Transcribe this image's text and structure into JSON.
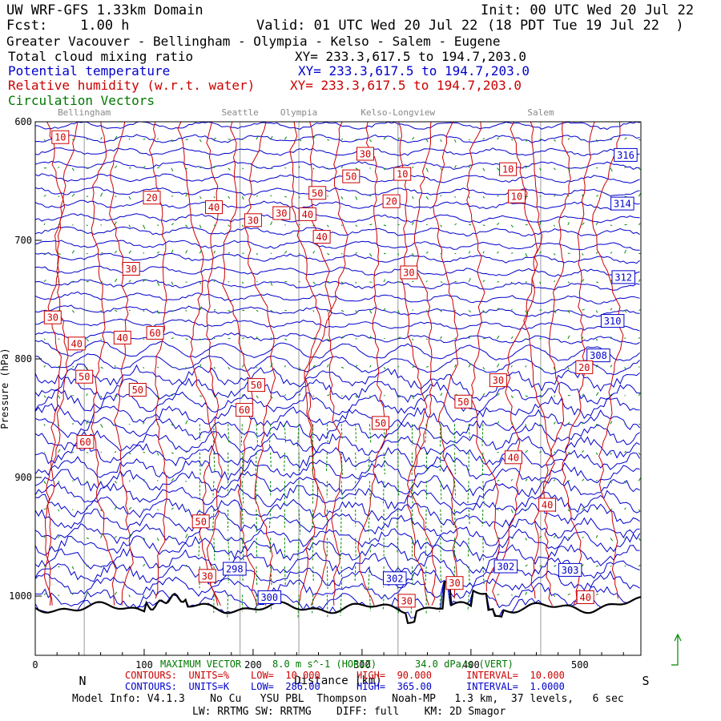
{
  "header": {
    "line1_left": "UW WRF-GFS 1.33km Domain",
    "line1_right": "Init: 00 UTC Wed 20 Jul 22",
    "line2_left": "Fcst:    1.00 h",
    "line2_mid": "Valid: 01 UTC Wed 20 Jul 22",
    "line2_right": "(18 PDT Tue 19 Jul 22  )",
    "region": "Greater Vacouver - Bellingham - Olympia - Kelso - Salem - Eugene"
  },
  "fields": [
    {
      "name": "Total cloud mixing ratio",
      "xy": "XY= 233.3,617.5 to 194.7,203.0",
      "color": "#000000"
    },
    {
      "name": "Potential temperature",
      "xy": "XY= 233.3,617.5 to 194.7,203.0",
      "color": "#0000cc"
    },
    {
      "name": "Relative humidity (w.r.t. water)",
      "xy": "XY= 233.3,617.5 to 194.7,203.0",
      "color": "#cc0000"
    },
    {
      "name": "Circulation Vectors",
      "xy": "",
      "color": "#007700"
    }
  ],
  "cities": [
    {
      "name": "Bellingham",
      "x": 45
    },
    {
      "name": "Seattle",
      "x": 188
    },
    {
      "name": "Olympia",
      "x": 242
    },
    {
      "name": "Kelso-Longview",
      "x": 333
    },
    {
      "name": "Salem",
      "x": 464
    }
  ],
  "chart_data": {
    "type": "line",
    "x_axis": {
      "label": "Distance (km)",
      "ticks": [
        0,
        100,
        200,
        300,
        400,
        500
      ],
      "range": [
        0,
        556
      ],
      "left_label": "N",
      "right_label": "S"
    },
    "y_axis": {
      "label": "Pressure (hPa)",
      "ticks": [
        600,
        700,
        800,
        900,
        1000
      ],
      "range": [
        1050,
        600
      ]
    },
    "theta_labels": [
      {
        "text": "316",
        "x": 542,
        "p": 628
      },
      {
        "text": "314",
        "x": 539,
        "p": 669
      },
      {
        "text": "312",
        "x": 540,
        "p": 731
      },
      {
        "text": "310",
        "x": 530,
        "p": 768
      },
      {
        "text": "308",
        "x": 517,
        "p": 797
      },
      {
        "text": "298",
        "x": 183,
        "p": 977
      },
      {
        "text": "300",
        "x": 215,
        "p": 1001
      },
      {
        "text": "302",
        "x": 330,
        "p": 985
      },
      {
        "text": "302",
        "x": 432,
        "p": 975
      },
      {
        "text": "303",
        "x": 491,
        "p": 978
      }
    ],
    "rh_labels": [
      {
        "text": "10",
        "x": 23,
        "p": 613
      },
      {
        "text": "20",
        "x": 107,
        "p": 664
      },
      {
        "text": "40",
        "x": 164,
        "p": 672
      },
      {
        "text": "30",
        "x": 200,
        "p": 683
      },
      {
        "text": "30",
        "x": 226,
        "p": 677
      },
      {
        "text": "40",
        "x": 250,
        "p": 678
      },
      {
        "text": "40",
        "x": 263,
        "p": 697
      },
      {
        "text": "50",
        "x": 259,
        "p": 660
      },
      {
        "text": "50",
        "x": 290,
        "p": 646
      },
      {
        "text": "30",
        "x": 303,
        "p": 627
      },
      {
        "text": "10",
        "x": 337,
        "p": 644
      },
      {
        "text": "20",
        "x": 327,
        "p": 667
      },
      {
        "text": "10",
        "x": 434,
        "p": 640
      },
      {
        "text": "10",
        "x": 442,
        "p": 663
      },
      {
        "text": "30",
        "x": 88,
        "p": 724
      },
      {
        "text": "30",
        "x": 343,
        "p": 727
      },
      {
        "text": "30",
        "x": 16,
        "p": 765
      },
      {
        "text": "40",
        "x": 38,
        "p": 787
      },
      {
        "text": "40",
        "x": 80,
        "p": 782
      },
      {
        "text": "60",
        "x": 110,
        "p": 778
      },
      {
        "text": "50",
        "x": 45,
        "p": 815
      },
      {
        "text": "50",
        "x": 94,
        "p": 826
      },
      {
        "text": "50",
        "x": 203,
        "p": 822
      },
      {
        "text": "60",
        "x": 192,
        "p": 843
      },
      {
        "text": "50",
        "x": 317,
        "p": 854
      },
      {
        "text": "30",
        "x": 425,
        "p": 818
      },
      {
        "text": "50",
        "x": 393,
        "p": 836
      },
      {
        "text": "20",
        "x": 504,
        "p": 807
      },
      {
        "text": "60",
        "x": 46,
        "p": 870
      },
      {
        "text": "40",
        "x": 439,
        "p": 883
      },
      {
        "text": "40",
        "x": 470,
        "p": 923
      },
      {
        "text": "50",
        "x": 152,
        "p": 937
      },
      {
        "text": "30",
        "x": 158,
        "p": 983
      },
      {
        "text": "30",
        "x": 385,
        "p": 989
      },
      {
        "text": "30",
        "x": 341,
        "p": 1004
      },
      {
        "text": "40",
        "x": 505,
        "p": 1001
      }
    ],
    "vector_legend": {
      "label": "MAXIMUM VECTOR",
      "horiz": "8.0 m s^-1 (HORIZ)",
      "vert": "34.0 dPa/s (VERT)"
    }
  },
  "footer": {
    "rh": {
      "contours": "CONTOURS:  UNITS=%",
      "low": "LOW=  10.000",
      "high": "HIGH=  90.000",
      "interval": "INTERVAL=  10.000"
    },
    "theta": {
      "contours": "CONTOURS:  UNITS=K",
      "low": "LOW=  286.00",
      "high": "HIGH=  365.00",
      "interval": "INTERVAL=  1.0000"
    },
    "model_info": "Model Info: V4.1.3    No Cu   YSU PBL  Thompson    Noah-MP   1.3 km,  37 levels,   6 sec",
    "model_info2": "LW: RRTMG SW: RRTMG    DIFF: full    KM: 2D Smagor"
  }
}
